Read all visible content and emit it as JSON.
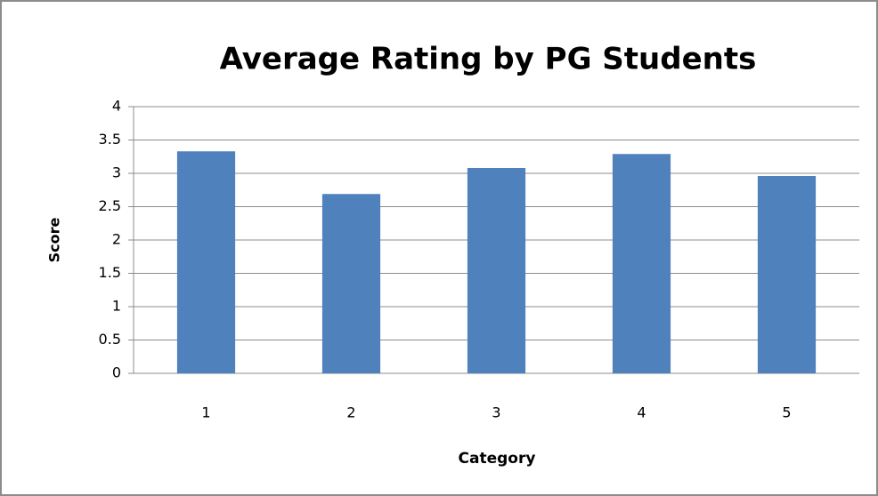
{
  "chart_data": {
    "type": "bar",
    "title": "Average Rating by PG Students",
    "x_label": "Category",
    "y_label": "Score",
    "categories": [
      "1",
      "2",
      "3",
      "4",
      "5"
    ],
    "values": [
      3.33,
      2.69,
      3.08,
      3.29,
      2.96
    ],
    "color": "#4f81bd",
    "ylim": [
      0,
      4
    ],
    "yticks": [
      0,
      0.5,
      1,
      1.5,
      2,
      2.5,
      3,
      3.5,
      4
    ],
    "grid": true
  }
}
